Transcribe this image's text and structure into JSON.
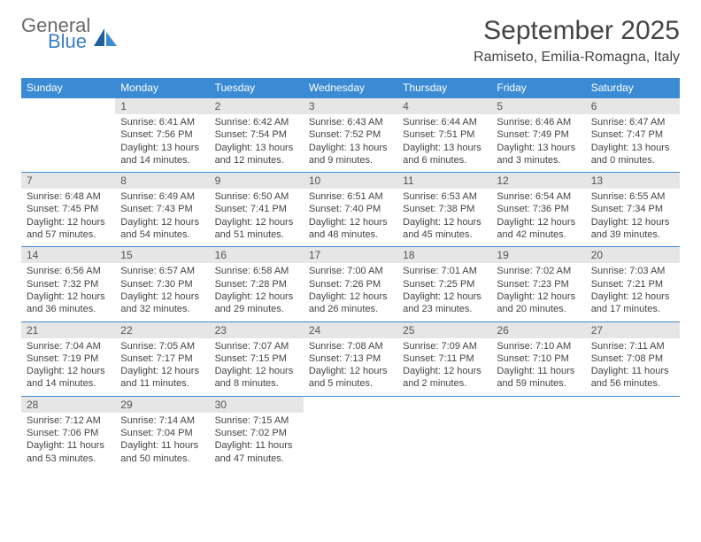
{
  "logo": {
    "general": "General",
    "blue": "Blue"
  },
  "title": "September 2025",
  "location": "Ramiseto, Emilia-Romagna, Italy",
  "colors": {
    "header_bg": "#3b8bd4",
    "header_text": "#ffffff",
    "daynum_bg": "#e6e6e6",
    "border": "#3b8bd4",
    "text": "#444444",
    "logo_gray": "#6a6a6a",
    "logo_blue": "#3b7fc4"
  },
  "weekdays": [
    "Sunday",
    "Monday",
    "Tuesday",
    "Wednesday",
    "Thursday",
    "Friday",
    "Saturday"
  ],
  "weeks": [
    [
      null,
      {
        "n": "1",
        "sunrise": "6:41 AM",
        "sunset": "7:56 PM",
        "dh": "13",
        "dm": "14"
      },
      {
        "n": "2",
        "sunrise": "6:42 AM",
        "sunset": "7:54 PM",
        "dh": "13",
        "dm": "12"
      },
      {
        "n": "3",
        "sunrise": "6:43 AM",
        "sunset": "7:52 PM",
        "dh": "13",
        "dm": "9"
      },
      {
        "n": "4",
        "sunrise": "6:44 AM",
        "sunset": "7:51 PM",
        "dh": "13",
        "dm": "6"
      },
      {
        "n": "5",
        "sunrise": "6:46 AM",
        "sunset": "7:49 PM",
        "dh": "13",
        "dm": "3"
      },
      {
        "n": "6",
        "sunrise": "6:47 AM",
        "sunset": "7:47 PM",
        "dh": "13",
        "dm": "0"
      }
    ],
    [
      {
        "n": "7",
        "sunrise": "6:48 AM",
        "sunset": "7:45 PM",
        "dh": "12",
        "dm": "57"
      },
      {
        "n": "8",
        "sunrise": "6:49 AM",
        "sunset": "7:43 PM",
        "dh": "12",
        "dm": "54"
      },
      {
        "n": "9",
        "sunrise": "6:50 AM",
        "sunset": "7:41 PM",
        "dh": "12",
        "dm": "51"
      },
      {
        "n": "10",
        "sunrise": "6:51 AM",
        "sunset": "7:40 PM",
        "dh": "12",
        "dm": "48"
      },
      {
        "n": "11",
        "sunrise": "6:53 AM",
        "sunset": "7:38 PM",
        "dh": "12",
        "dm": "45"
      },
      {
        "n": "12",
        "sunrise": "6:54 AM",
        "sunset": "7:36 PM",
        "dh": "12",
        "dm": "42"
      },
      {
        "n": "13",
        "sunrise": "6:55 AM",
        "sunset": "7:34 PM",
        "dh": "12",
        "dm": "39"
      }
    ],
    [
      {
        "n": "14",
        "sunrise": "6:56 AM",
        "sunset": "7:32 PM",
        "dh": "12",
        "dm": "36"
      },
      {
        "n": "15",
        "sunrise": "6:57 AM",
        "sunset": "7:30 PM",
        "dh": "12",
        "dm": "32"
      },
      {
        "n": "16",
        "sunrise": "6:58 AM",
        "sunset": "7:28 PM",
        "dh": "12",
        "dm": "29"
      },
      {
        "n": "17",
        "sunrise": "7:00 AM",
        "sunset": "7:26 PM",
        "dh": "12",
        "dm": "26"
      },
      {
        "n": "18",
        "sunrise": "7:01 AM",
        "sunset": "7:25 PM",
        "dh": "12",
        "dm": "23"
      },
      {
        "n": "19",
        "sunrise": "7:02 AM",
        "sunset": "7:23 PM",
        "dh": "12",
        "dm": "20"
      },
      {
        "n": "20",
        "sunrise": "7:03 AM",
        "sunset": "7:21 PM",
        "dh": "12",
        "dm": "17"
      }
    ],
    [
      {
        "n": "21",
        "sunrise": "7:04 AM",
        "sunset": "7:19 PM",
        "dh": "12",
        "dm": "14"
      },
      {
        "n": "22",
        "sunrise": "7:05 AM",
        "sunset": "7:17 PM",
        "dh": "12",
        "dm": "11"
      },
      {
        "n": "23",
        "sunrise": "7:07 AM",
        "sunset": "7:15 PM",
        "dh": "12",
        "dm": "8"
      },
      {
        "n": "24",
        "sunrise": "7:08 AM",
        "sunset": "7:13 PM",
        "dh": "12",
        "dm": "5"
      },
      {
        "n": "25",
        "sunrise": "7:09 AM",
        "sunset": "7:11 PM",
        "dh": "12",
        "dm": "2"
      },
      {
        "n": "26",
        "sunrise": "7:10 AM",
        "sunset": "7:10 PM",
        "dh": "11",
        "dm": "59"
      },
      {
        "n": "27",
        "sunrise": "7:11 AM",
        "sunset": "7:08 PM",
        "dh": "11",
        "dm": "56"
      }
    ],
    [
      {
        "n": "28",
        "sunrise": "7:12 AM",
        "sunset": "7:06 PM",
        "dh": "11",
        "dm": "53"
      },
      {
        "n": "29",
        "sunrise": "7:14 AM",
        "sunset": "7:04 PM",
        "dh": "11",
        "dm": "50"
      },
      {
        "n": "30",
        "sunrise": "7:15 AM",
        "sunset": "7:02 PM",
        "dh": "11",
        "dm": "47"
      },
      null,
      null,
      null,
      null
    ]
  ],
  "labels": {
    "sunrise": "Sunrise:",
    "sunset": "Sunset:",
    "daylight_prefix": "Daylight:",
    "hours_word": "hours",
    "and_word": "and",
    "minutes_word": "minutes."
  }
}
